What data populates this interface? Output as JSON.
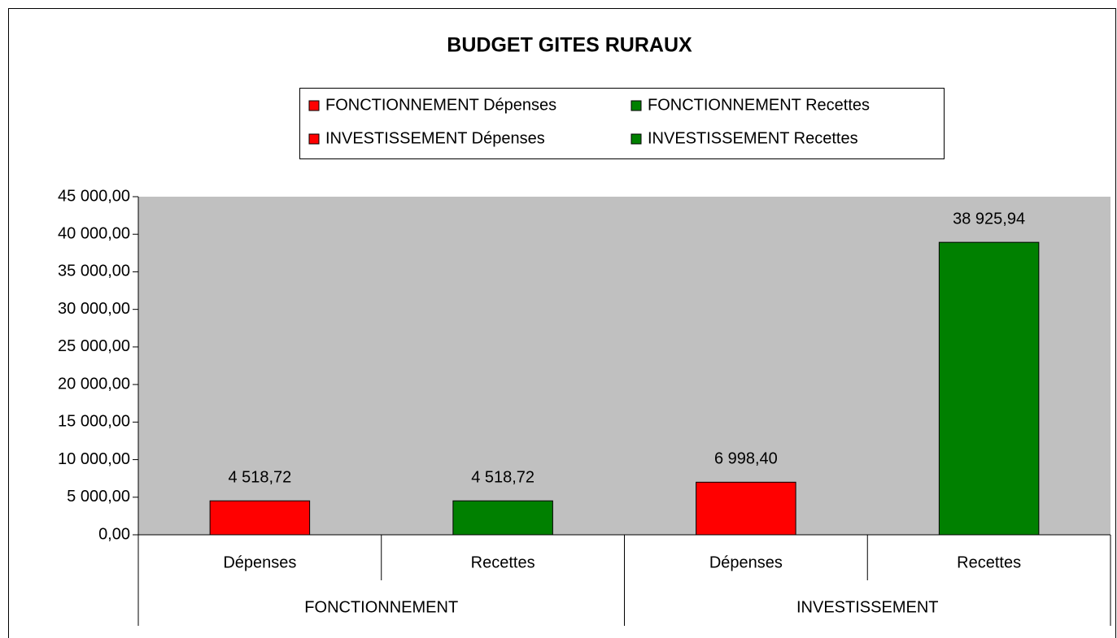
{
  "chart_data": {
    "type": "bar",
    "title": "BUDGET GITES RURAUX",
    "categories": [
      "Dépenses",
      "Recettes",
      "Dépenses",
      "Recettes"
    ],
    "groups": [
      "FONCTIONNEMENT",
      "INVESTISSEMENT"
    ],
    "series": [
      {
        "name": "FONCTIONNEMENT Dépenses",
        "color": "#ff0000",
        "values": [
          4518.72,
          null,
          null,
          null
        ],
        "value_labels": [
          "4 518,72",
          null,
          null,
          null
        ]
      },
      {
        "name": "FONCTIONNEMENT Recettes",
        "color": "#008000",
        "values": [
          null,
          4518.72,
          null,
          null
        ],
        "value_labels": [
          null,
          "4 518,72",
          null,
          null
        ]
      },
      {
        "name": "INVESTISSEMENT Dépenses",
        "color": "#ff0000",
        "values": [
          null,
          null,
          6998.4,
          null
        ],
        "value_labels": [
          null,
          null,
          "6 998,40",
          null
        ]
      },
      {
        "name": "INVESTISSEMENT Recettes",
        "color": "#008000",
        "values": [
          null,
          null,
          null,
          38925.94
        ],
        "value_labels": [
          null,
          null,
          null,
          "38 925,94"
        ]
      }
    ],
    "ylim": [
      0,
      45000
    ],
    "yticks": [
      {
        "value": 0,
        "label": "0,00"
      },
      {
        "value": 5000,
        "label": "5 000,00"
      },
      {
        "value": 10000,
        "label": "10 000,00"
      },
      {
        "value": 15000,
        "label": "15 000,00"
      },
      {
        "value": 20000,
        "label": "20 000,00"
      },
      {
        "value": 25000,
        "label": "25 000,00"
      },
      {
        "value": 30000,
        "label": "30 000,00"
      },
      {
        "value": 35000,
        "label": "35 000,00"
      },
      {
        "value": 40000,
        "label": "40 000,00"
      },
      {
        "value": 45000,
        "label": "45 000,00"
      }
    ],
    "plot_background": "#c0c0c0",
    "legend": "top"
  }
}
